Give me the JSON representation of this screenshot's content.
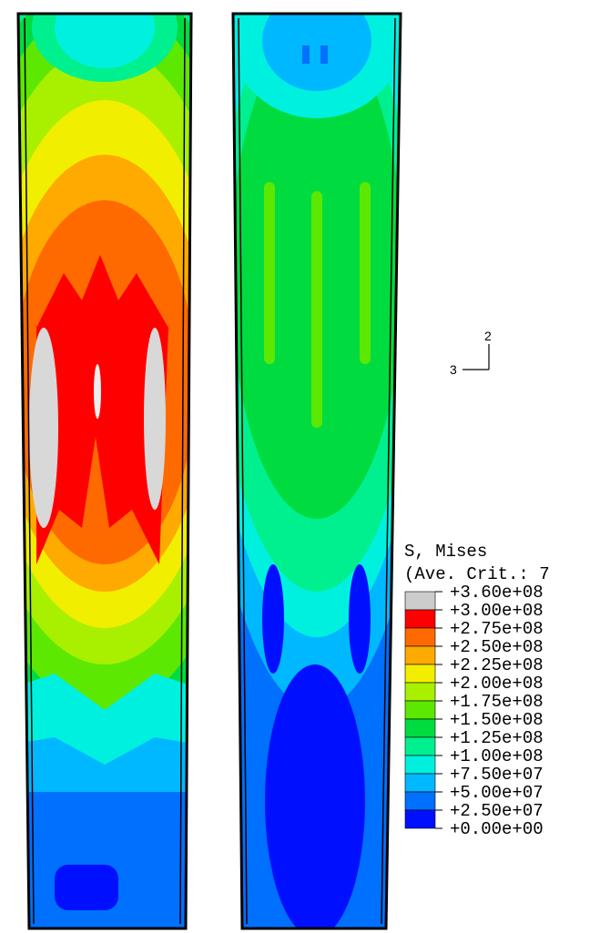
{
  "legend": {
    "title": "S, Mises",
    "subtitle": "(Ave. Crit.: 7",
    "labels": [
      "+3.60e+08",
      "+3.00e+08",
      "+2.75e+08",
      "+2.50e+08",
      "+2.25e+08",
      "+2.00e+08",
      "+1.75e+08",
      "+1.50e+08",
      "+1.25e+08",
      "+1.00e+08",
      "+7.50e+07",
      "+5.00e+07",
      "+2.50e+07",
      "+0.00e+00"
    ],
    "colors": [
      "#cccccc",
      "#ff0000",
      "#ff6a00",
      "#ffaa00",
      "#f2ee00",
      "#a8f000",
      "#5ce800",
      "#00dc40",
      "#00f090",
      "#00f0e0",
      "#00b8ff",
      "#0070ff",
      "#0010ff"
    ]
  },
  "triad": {
    "axis_2": "2",
    "axis_3": "3"
  }
}
